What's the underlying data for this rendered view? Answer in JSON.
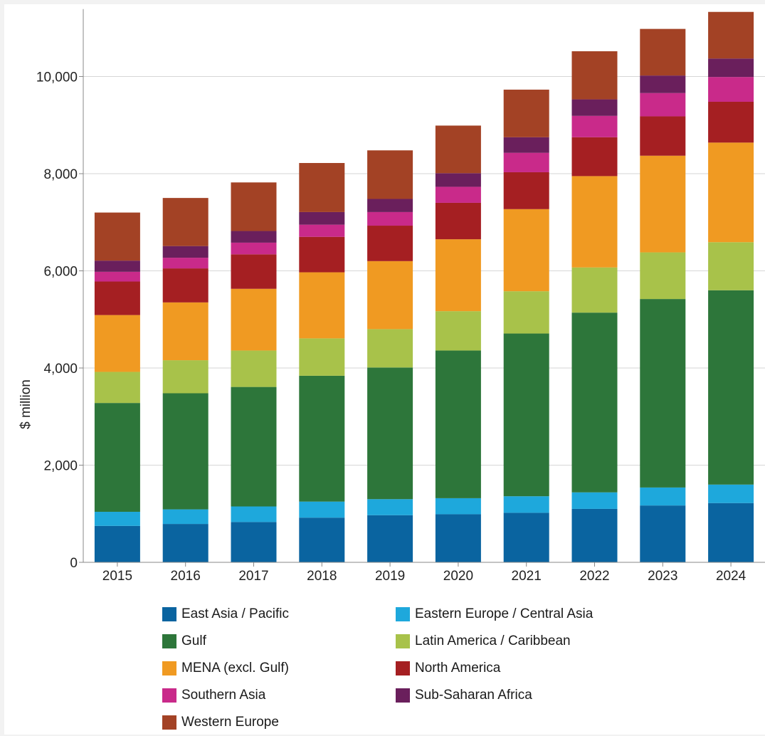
{
  "chart_data": {
    "type": "bar",
    "stacked": true,
    "ylabel": "$ million",
    "ylim": [
      0,
      11300
    ],
    "yticks": [
      0,
      2000,
      4000,
      6000,
      8000,
      10000
    ],
    "ytick_labels": [
      "0",
      "2,000",
      "4,000",
      "6,000",
      "8,000",
      "10,000"
    ],
    "grid": "horizontal",
    "legend_position": "bottom",
    "categories": [
      "2015",
      "2016",
      "2017",
      "2018",
      "2019",
      "2020",
      "2021",
      "2022",
      "2023",
      "2024"
    ],
    "series": [
      {
        "name": "East Asia / Pacific",
        "color": "#0a64a0",
        "values": [
          750,
          790,
          830,
          920,
          970,
          990,
          1020,
          1100,
          1170,
          1220
        ]
      },
      {
        "name": "Eastern Europe / Central Asia",
        "color": "#1ea8dc",
        "values": [
          290,
          300,
          320,
          330,
          330,
          330,
          340,
          340,
          370,
          380
        ]
      },
      {
        "name": "Gulf",
        "color": "#2d763a",
        "values": [
          2240,
          2390,
          2460,
          2590,
          2710,
          3040,
          3350,
          3700,
          3880,
          4000
        ]
      },
      {
        "name": "Latin America / Caribbean",
        "color": "#a8c24a",
        "values": [
          640,
          680,
          750,
          770,
          790,
          810,
          870,
          930,
          960,
          990
        ]
      },
      {
        "name": "MENA (excl. Gulf)",
        "color": "#f09a22",
        "values": [
          1170,
          1190,
          1270,
          1360,
          1400,
          1480,
          1690,
          1880,
          1990,
          2050
        ]
      },
      {
        "name": "North America",
        "color": "#a51f22",
        "values": [
          690,
          700,
          710,
          730,
          730,
          750,
          760,
          800,
          810,
          840
        ]
      },
      {
        "name": "Southern Asia",
        "color": "#c92a8a",
        "values": [
          200,
          220,
          240,
          250,
          280,
          330,
          400,
          440,
          480,
          510
        ]
      },
      {
        "name": "Sub-Saharan Africa",
        "color": "#6a1f5c",
        "values": [
          230,
          240,
          240,
          260,
          270,
          280,
          320,
          340,
          360,
          380
        ]
      },
      {
        "name": "Western Europe",
        "color": "#a34225",
        "values": [
          990,
          990,
          1000,
          1010,
          1000,
          980,
          980,
          990,
          960,
          960
        ]
      }
    ]
  }
}
